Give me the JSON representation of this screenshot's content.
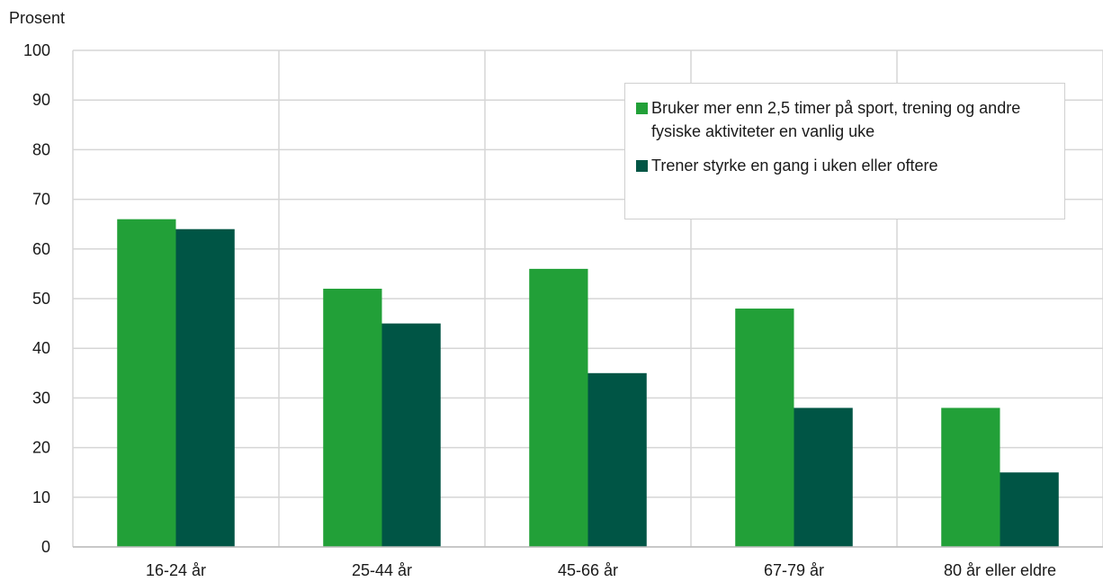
{
  "chart_data": {
    "type": "bar",
    "ylabel": "Prosent",
    "ylim": [
      0,
      100
    ],
    "yticks": [
      0,
      10,
      20,
      30,
      40,
      50,
      60,
      70,
      80,
      90,
      100
    ],
    "categories": [
      "16-24 år",
      "25-44 år",
      "45-66 år",
      "67-79 år",
      "80 år eller eldre"
    ],
    "series": [
      {
        "name": "Bruker mer enn 2,5 timer på sport, trening og andre fysiske aktiviteter en vanlig uke",
        "color": "#22a038",
        "values": [
          66,
          52,
          56,
          48,
          28
        ]
      },
      {
        "name": "Trener styrke en gang i uken eller oftere",
        "color": "#005545",
        "values": [
          64,
          45,
          35,
          28,
          15
        ]
      }
    ],
    "grid": true,
    "legend_position": "top-right"
  }
}
